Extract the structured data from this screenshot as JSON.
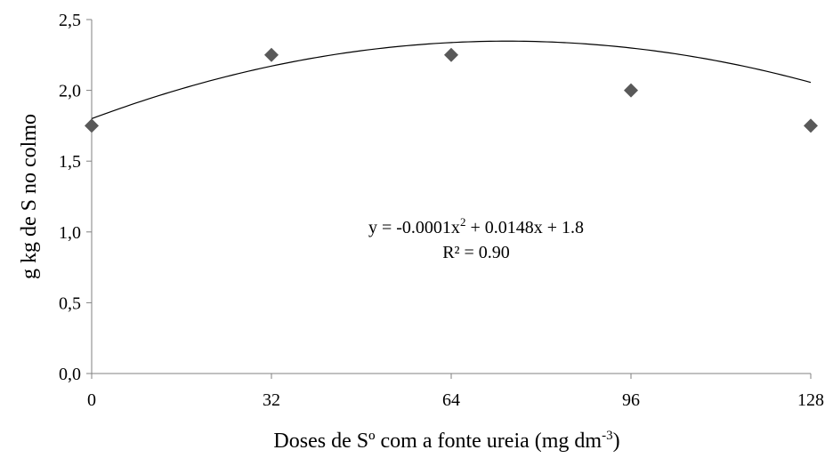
{
  "chart_data": {
    "type": "scatter",
    "title": "",
    "xlabel_main": "Doses de Sº com a fonte ureia  (mg dm",
    "xlabel_sup": "-3",
    "xlabel_end": ")",
    "ylabel": "g kg de S no colmo",
    "xlim": [
      0,
      128
    ],
    "ylim": [
      0,
      2.5
    ],
    "x_ticks": [
      0,
      32,
      64,
      96,
      128
    ],
    "x_tick_labels": [
      "0",
      "32",
      "64",
      "96",
      "128"
    ],
    "y_ticks": [
      0,
      0.5,
      1.0,
      1.5,
      2.0,
      2.5
    ],
    "y_tick_labels": [
      "0,0",
      "0,5",
      "1,0",
      "1,5",
      "2,0",
      "2,5"
    ],
    "grid": false,
    "series": [
      {
        "marker": "diamond",
        "color": "#595959",
        "x": [
          0,
          32,
          64,
          96,
          128
        ],
        "y": [
          1.75,
          2.25,
          2.25,
          2.0,
          1.75
        ]
      }
    ],
    "trendline": {
      "type": "polynomial",
      "coefficients": {
        "a": -0.0001,
        "b": 0.0148,
        "c": 1.8
      },
      "color": "#000000"
    },
    "annotations": {
      "equation_main": "y = -0.0001x",
      "equation_sup": "2",
      "equation_rest": " + 0.0148x + 1.8",
      "r2": "R² = 0.90"
    },
    "colors": {
      "marker": "#595959",
      "axis": "#808080",
      "line": "#000000"
    }
  }
}
